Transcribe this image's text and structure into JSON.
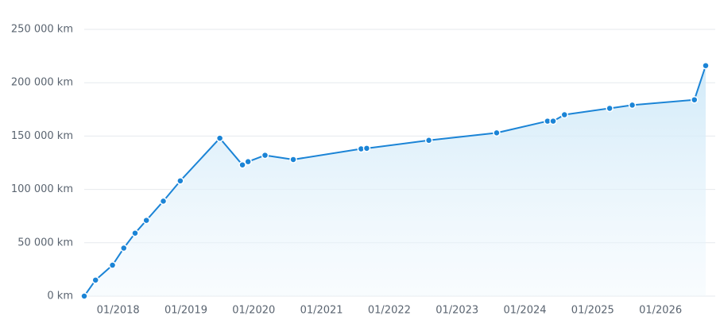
{
  "chart_data": {
    "type": "area",
    "x": [
      "2017-07",
      "2017-09",
      "2017-12",
      "2018-02",
      "2018-04",
      "2018-06",
      "2018-09",
      "2018-12",
      "2019-07",
      "2019-11",
      "2019-12",
      "2020-03",
      "2020-08",
      "2021-08",
      "2021-09",
      "2022-08",
      "2023-08",
      "2024-05",
      "2024-06",
      "2024-08",
      "2025-04",
      "2025-08",
      "2026-07",
      "2026-09"
    ],
    "series": [
      {
        "color": "#1b84d6",
        "values": [
          0,
          15000,
          29000,
          45000,
          59000,
          71000,
          89000,
          108000,
          148000,
          123000,
          126000,
          132000,
          128000,
          138000,
          138500,
          146000,
          153000,
          164000,
          164000,
          170000,
          176000,
          179000,
          184000,
          216000
        ]
      }
    ],
    "xlim": [
      "2017-07",
      "2026-09"
    ],
    "xticks": [
      {
        "value": "2018-01",
        "label": "01/2018"
      },
      {
        "value": "2019-01",
        "label": "01/2019"
      },
      {
        "value": "2020-01",
        "label": "01/2020"
      },
      {
        "value": "2021-01",
        "label": "01/2021"
      },
      {
        "value": "2022-01",
        "label": "01/2022"
      },
      {
        "value": "2023-01",
        "label": "01/2023"
      },
      {
        "value": "2024-01",
        "label": "01/2024"
      },
      {
        "value": "2025-01",
        "label": "01/2025"
      },
      {
        "value": "2026-01",
        "label": "01/2026"
      }
    ],
    "ylim": [
      0,
      250000
    ],
    "yticks": [
      {
        "value": 0,
        "label": "0 km"
      },
      {
        "value": 50000,
        "label": "50 000 km"
      },
      {
        "value": 100000,
        "label": "100 000 km"
      },
      {
        "value": 150000,
        "label": "150 000 km"
      },
      {
        "value": 200000,
        "label": "200 000 km"
      },
      {
        "value": 250000,
        "label": "250 000 km"
      }
    ],
    "grid": true
  }
}
